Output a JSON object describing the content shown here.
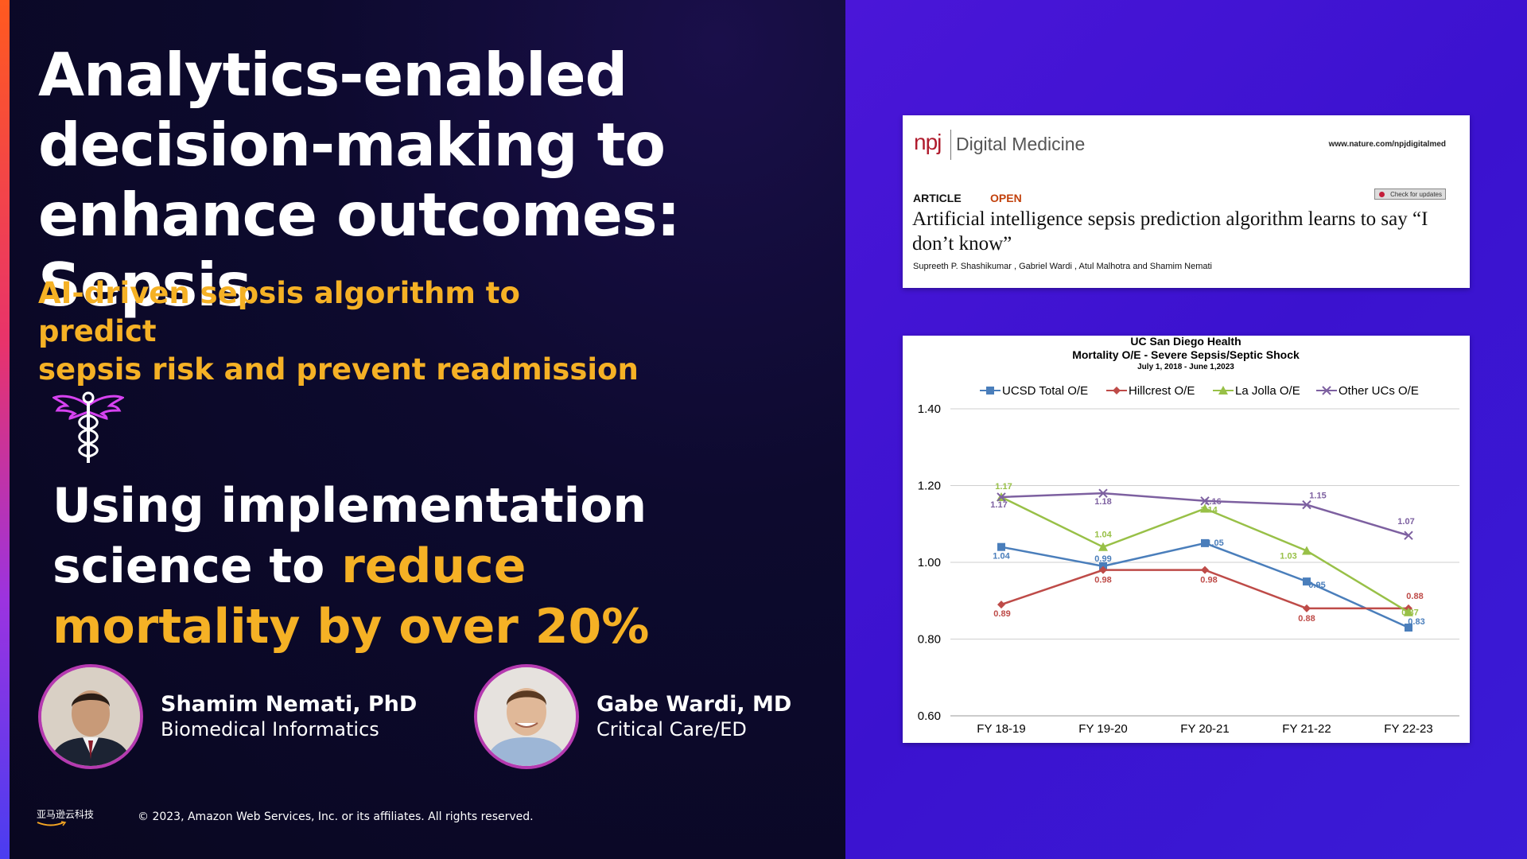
{
  "slide": {
    "title_lines": [
      "Analytics-enabled",
      "decision-making to",
      "enhance outcomes: Sepsis"
    ],
    "subtitle_lines": [
      "AI-driven sepsis algorithm to predict",
      "sepsis risk and prevent readmission"
    ],
    "statement": {
      "part1": "Using implementation",
      "part2": "science to ",
      "highlight1": "reduce",
      "highlight2": "mortality by over 20%"
    },
    "icon": "caduceus-icon"
  },
  "speakers": [
    {
      "name": "Shamim Nemati, PhD",
      "role": "Biomedical Informatics"
    },
    {
      "name": "Gabe Wardi, MD",
      "role": "Critical Care/ED"
    }
  ],
  "footer": {
    "logo_text": "亚马逊云科技",
    "copyright": "© 2023, Amazon Web Services, Inc. or its affiliates. All rights reserved."
  },
  "paper": {
    "brand": "npj",
    "journal": "Digital Medicine",
    "url": "www.nature.com/npjdigitalmed",
    "article_label": "ARTICLE",
    "open_label": "OPEN",
    "check_updates": "Check for updates",
    "title": "Artificial intelligence sepsis prediction algorithm learns to say “I don’t know”",
    "authors": "Supreeth P. Shashikumar , Gabriel Wardi , Atul Malhotra and Shamim Nemati"
  },
  "chart_data": {
    "type": "line",
    "title": "UC San Diego Health",
    "subtitle": "Mortality O/E - Severe Sepsis/Septic Shock",
    "date_range": "July 1, 2018 - June 1,2023",
    "categories": [
      "FY 18-19",
      "FY 19-20",
      "FY 20-21",
      "FY 21-22",
      "FY 22-23"
    ],
    "ylim": [
      0.6,
      1.4
    ],
    "yticks": [
      "0.60",
      "0.80",
      "1.00",
      "1.20",
      "1.40"
    ],
    "grid": true,
    "legend_position": "top",
    "series": [
      {
        "name": "UCSD Total O/E",
        "color": "#4a7ebb",
        "marker": "square",
        "values": [
          1.04,
          0.99,
          1.05,
          0.95,
          0.83
        ],
        "labels": [
          "1.04",
          "0.99",
          "1.05",
          "0.95",
          "0.83"
        ]
      },
      {
        "name": "Hillcrest O/E",
        "color": "#be4b48",
        "marker": "diamond",
        "values": [
          0.89,
          0.98,
          0.98,
          0.88,
          0.88
        ],
        "labels": [
          "0.89",
          "0.98",
          "0.98",
          "0.88",
          "0.88"
        ]
      },
      {
        "name": "La Jolla O/E",
        "color": "#98c047",
        "marker": "triangle",
        "values": [
          1.17,
          1.04,
          1.14,
          1.03,
          0.87
        ],
        "labels": [
          "1.17",
          "1.04",
          "1.14",
          "1.03",
          "0.87"
        ]
      },
      {
        "name": "Other UCs O/E",
        "color": "#7d60a0",
        "marker": "x",
        "values": [
          1.17,
          1.18,
          1.16,
          1.15,
          1.07
        ],
        "labels": [
          "1.17",
          "1.18",
          "1.16",
          "1.15",
          "1.07"
        ]
      }
    ]
  }
}
